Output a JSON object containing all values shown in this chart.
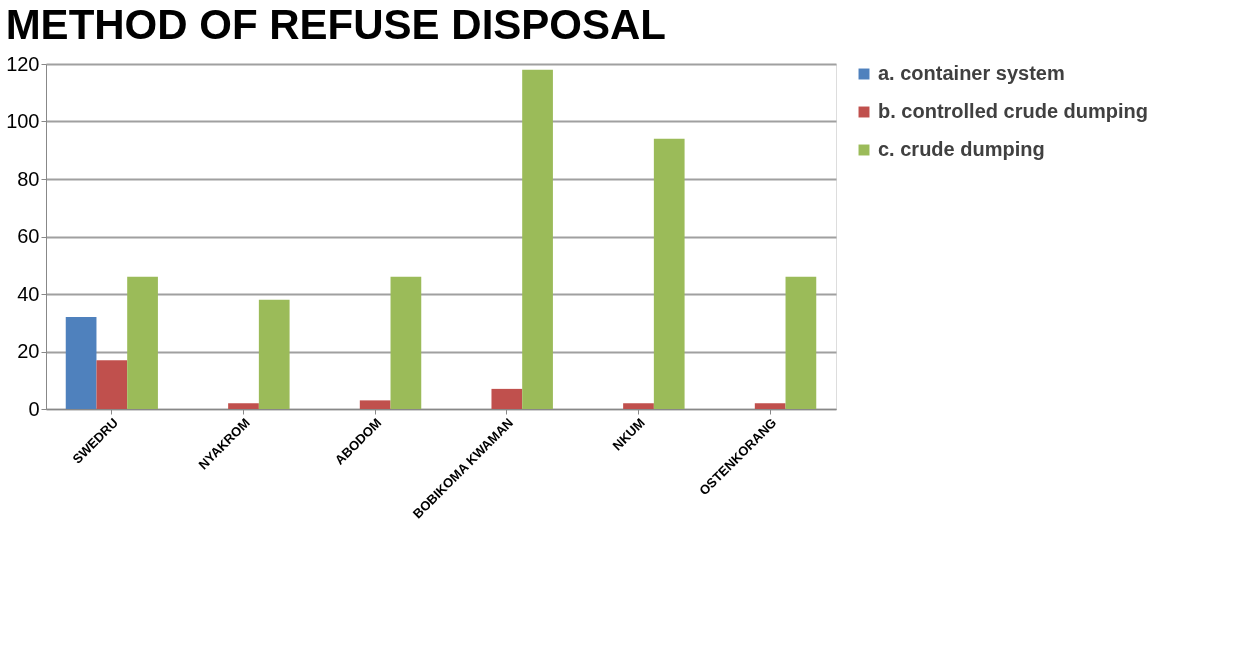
{
  "chart_data": {
    "type": "bar",
    "title": "METHOD OF REFUSE DISPOSAL",
    "categories": [
      "SWEDRU",
      "NYAKROM",
      "ABODOM",
      "BOBIKOMA KWAMAN",
      "NKUM",
      "OSTENKORANG"
    ],
    "series": [
      {
        "name": "a. container system",
        "color": "#4f81bd",
        "values": [
          32,
          0,
          0,
          0,
          0,
          0
        ]
      },
      {
        "name": "b. controlled crude dumping",
        "color": "#c0504d",
        "values": [
          17,
          2,
          3,
          7,
          2,
          2
        ]
      },
      {
        "name": "c. crude dumping",
        "color": "#9bbb59",
        "values": [
          46,
          38,
          46,
          118,
          94,
          46
        ]
      }
    ],
    "ylim": [
      0,
      120
    ],
    "yticks": [
      0,
      20,
      40,
      60,
      80,
      100,
      120
    ],
    "grid": "y",
    "legend": "right"
  }
}
